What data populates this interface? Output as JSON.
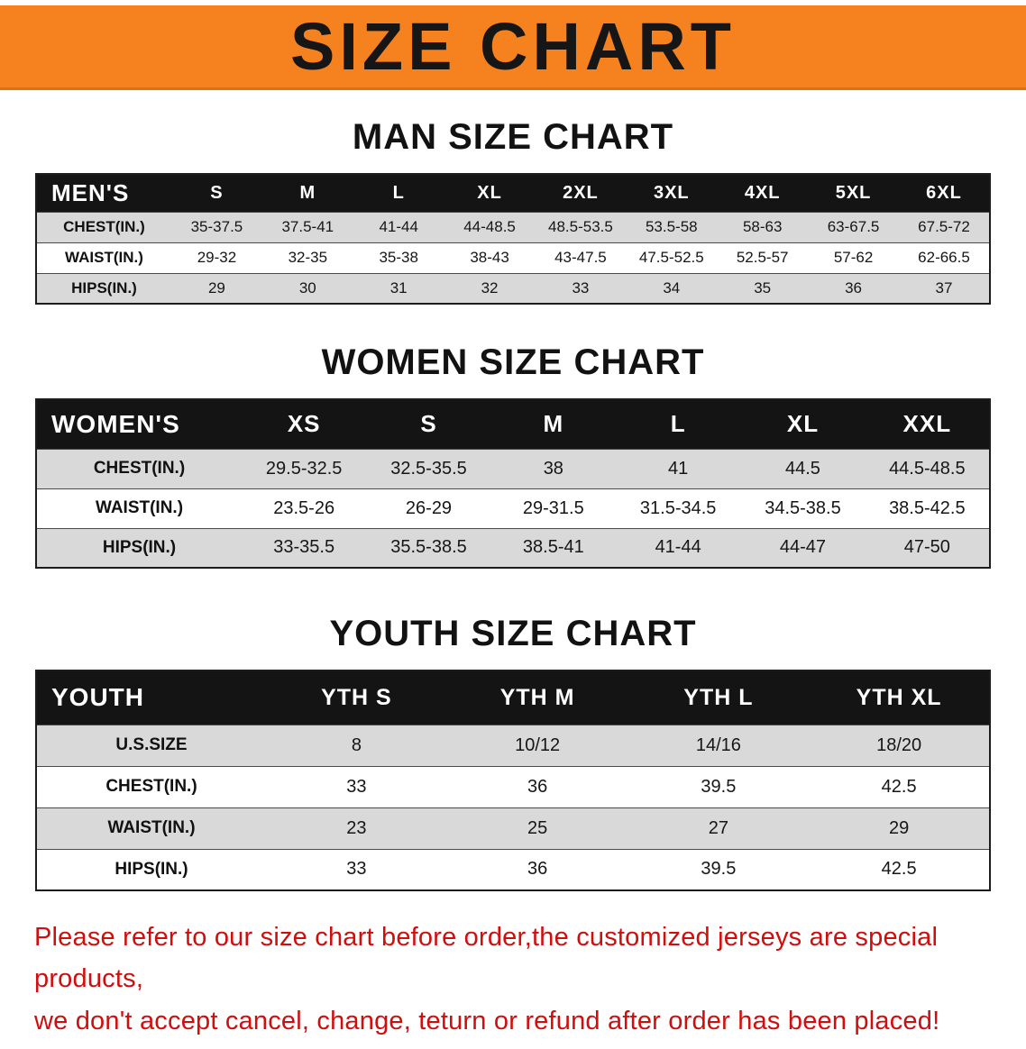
{
  "banner": {
    "title": "SIZE CHART"
  },
  "colors": {
    "banner_orange": "#f6821f",
    "header_black": "#141414",
    "row_gray": "#d9d9d9",
    "notice_red": "#cf0e0e"
  },
  "chart_data": [
    {
      "type": "table",
      "title": "MAN SIZE CHART",
      "columns": [
        "MEN'S",
        "S",
        "M",
        "L",
        "XL",
        "2XL",
        "3XL",
        "4XL",
        "5XL",
        "6XL"
      ],
      "rows": [
        [
          "CHEST(IN.)",
          "35-37.5",
          "37.5-41",
          "41-44",
          "44-48.5",
          "48.5-53.5",
          "53.5-58",
          "58-63",
          "63-67.5",
          "67.5-72"
        ],
        [
          "WAIST(IN.)",
          "29-32",
          "32-35",
          "35-38",
          "38-43",
          "43-47.5",
          "47.5-52.5",
          "52.5-57",
          "57-62",
          "62-66.5"
        ],
        [
          "HIPS(IN.)",
          "29",
          "30",
          "31",
          "32",
          "33",
          "34",
          "35",
          "36",
          "37"
        ]
      ]
    },
    {
      "type": "table",
      "title": "WOMEN SIZE CHART",
      "columns": [
        "WOMEN'S",
        "XS",
        "S",
        "M",
        "L",
        "XL",
        "XXL"
      ],
      "rows": [
        [
          "CHEST(IN.)",
          "29.5-32.5",
          "32.5-35.5",
          "38",
          "41",
          "44.5",
          "44.5-48.5"
        ],
        [
          "WAIST(IN.)",
          "23.5-26",
          "26-29",
          "29-31.5",
          "31.5-34.5",
          "34.5-38.5",
          "38.5-42.5"
        ],
        [
          "HIPS(IN.)",
          "33-35.5",
          "35.5-38.5",
          "38.5-41",
          "41-44",
          "44-47",
          "47-50"
        ]
      ]
    },
    {
      "type": "table",
      "title": "YOUTH SIZE CHART",
      "columns": [
        "YOUTH",
        "YTH S",
        "YTH M",
        "YTH L",
        "YTH XL"
      ],
      "rows": [
        [
          "U.S.SIZE",
          "8",
          "10/12",
          "14/16",
          "18/20"
        ],
        [
          "CHEST(IN.)",
          "33",
          "36",
          "39.5",
          "42.5"
        ],
        [
          "WAIST(IN.)",
          "23",
          "25",
          "27",
          "29"
        ],
        [
          "HIPS(IN.)",
          "33",
          "36",
          "39.5",
          "42.5"
        ]
      ]
    }
  ],
  "notice": {
    "line1": "Please refer to our size chart before order,the customized jerseys are special products,",
    "line2": "we don't accept cancel, change, teturn or refund after order has been placed!"
  }
}
